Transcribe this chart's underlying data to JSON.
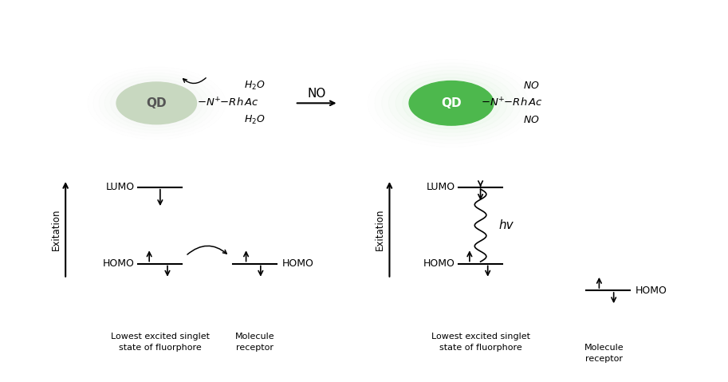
{
  "bg_color": "#ffffff",
  "qd_left_core": "#c8d8c0",
  "qd_left_glow": "#b8ccb8",
  "qd_right_core": "#4db84d",
  "qd_right_glow": "#80dd80",
  "text_color": "#1a1a1a",
  "line_color": "#1a1a1a",
  "lumo_label": "LUMO",
  "homo_label": "HOMO",
  "exitation_label": "Exitation",
  "fluorphore_label": "Lowest excited singlet\nstate of fluorphore",
  "receptor_label": "Molecule\nreceptor",
  "hv_label": "hv",
  "no_arrow_label": "NO"
}
